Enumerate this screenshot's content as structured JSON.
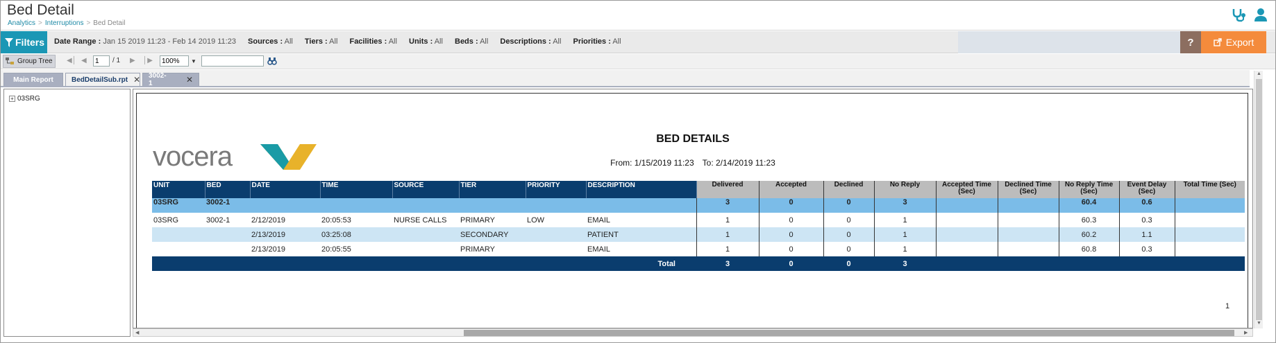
{
  "header": {
    "title": "Bed Detail",
    "breadcrumb": [
      "Analytics",
      "Interruptions",
      "Bed Detail"
    ],
    "icons": [
      "stethoscope-icon",
      "user-icon"
    ]
  },
  "filters": {
    "button_label": "Filters",
    "date_range_label": "Date Range :",
    "date_range_value": "Jan 15 2019 11:23 - Feb 14 2019 11:23",
    "items": [
      {
        "label": "Sources :",
        "value": "All"
      },
      {
        "label": "Tiers :",
        "value": "All"
      },
      {
        "label": "Facilities :",
        "value": "All"
      },
      {
        "label": "Units :",
        "value": "All"
      },
      {
        "label": "Beds :",
        "value": "All"
      },
      {
        "label": "Descriptions :",
        "value": "All"
      },
      {
        "label": "Priorities :",
        "value": "All"
      }
    ],
    "help_label": "?",
    "export_label": "Export"
  },
  "toolbar": {
    "group_tree_label": "Group Tree",
    "page_value": "1",
    "page_total": "/ 1",
    "zoom_value": "100%",
    "search_value": ""
  },
  "tabs": [
    {
      "label": "Main Report",
      "closable": false,
      "active": false
    },
    {
      "label": "BedDetailSub.rpt",
      "closable": true,
      "active": true
    },
    {
      "label": "3002-1",
      "closable": true,
      "active": false
    }
  ],
  "tree": {
    "node_label": "03SRG",
    "expander": "+"
  },
  "report": {
    "logo_text": "vocera",
    "title": "BED DETAILS",
    "from": "From: 1/15/2019 11:23",
    "to": "To: 2/14/2019 11:23",
    "page_number": "1",
    "columns_left": [
      "UNIT",
      "BED",
      "DATE",
      "TIME",
      "SOURCE",
      "TIER",
      "PRIORITY",
      "DESCRIPTION"
    ],
    "columns_num": [
      "Delivered",
      "Accepted",
      "Declined",
      "No Reply",
      "Accepted Time (Sec)",
      "Declined Time (Sec)",
      "No Reply Time (Sec)",
      "Event Delay (Sec)",
      "Total Time (Sec)"
    ],
    "group_row": {
      "unit": "03SRG",
      "bed": "3002-1",
      "values": [
        "3",
        "0",
        "0",
        "3",
        "",
        "",
        "60.4",
        "0.6",
        ""
      ]
    },
    "rows": [
      {
        "unit": "03SRG",
        "bed": "3002-1",
        "date": "2/12/2019",
        "time": "20:05:53",
        "source": "NURSE CALLS",
        "tier": "PRIMARY",
        "priority": "LOW",
        "description": "EMAIL",
        "values": [
          "1",
          "0",
          "0",
          "1",
          "",
          "",
          "60.3",
          "0.3",
          ""
        ]
      },
      {
        "unit": "",
        "bed": "",
        "date": "2/13/2019",
        "time": "03:25:08",
        "source": "",
        "tier": "SECONDARY",
        "priority": "",
        "description": "PATIENT",
        "values": [
          "1",
          "0",
          "0",
          "1",
          "",
          "",
          "60.2",
          "1.1",
          ""
        ]
      },
      {
        "unit": "",
        "bed": "",
        "date": "2/13/2019",
        "time": "20:05:55",
        "source": "",
        "tier": "PRIMARY",
        "priority": "",
        "description": "EMAIL",
        "values": [
          "1",
          "0",
          "0",
          "1",
          "",
          "",
          "60.8",
          "0.3",
          ""
        ]
      }
    ],
    "total_row": {
      "label": "Total",
      "values": [
        "3",
        "0",
        "0",
        "3",
        "",
        "",
        "",
        "",
        ""
      ]
    }
  },
  "colors": {
    "teal": "#1b97b5",
    "orange": "#f48b3c",
    "navy": "#0a3d6e",
    "group_blue": "#7bbce8",
    "row_blue": "#cde5f4"
  }
}
